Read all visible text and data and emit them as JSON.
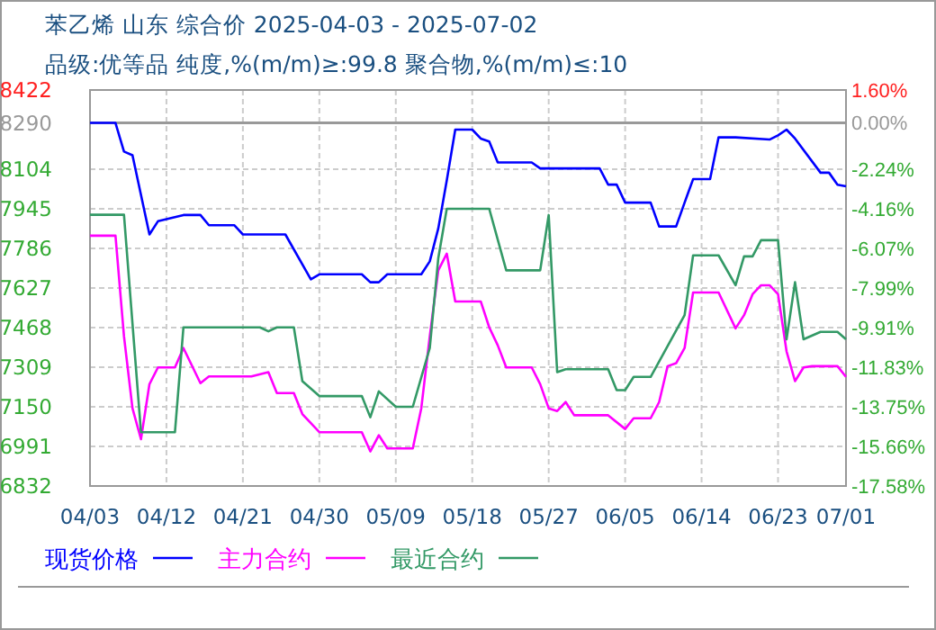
{
  "chart_data": {
    "type": "line",
    "title": "苯乙烯 山东 综合价 2025-04-03 - 2025-07-02",
    "subtitle": "品级:优等品 纯度,%(m/m)≥:99.8 聚合物,%(m/m)≤:10",
    "xlim": [
      "2025-04-03",
      "2025-07-01"
    ],
    "xticks": [
      {
        "value": "2025-04-03",
        "label": "04/03"
      },
      {
        "value": "2025-04-12",
        "label": "04/12"
      },
      {
        "value": "2025-04-21",
        "label": "04/21"
      },
      {
        "value": "2025-04-30",
        "label": "04/30"
      },
      {
        "value": "2025-05-09",
        "label": "05/09"
      },
      {
        "value": "2025-05-18",
        "label": "05/18"
      },
      {
        "value": "2025-05-27",
        "label": "05/27"
      },
      {
        "value": "2025-06-05",
        "label": "06/05"
      },
      {
        "value": "2025-06-14",
        "label": "06/14"
      },
      {
        "value": "2025-06-23",
        "label": "06/23"
      },
      {
        "value": "2025-07-01",
        "label": "07/01"
      }
    ],
    "ylim": [
      6832,
      8422
    ],
    "yticks": [
      6832,
      6991,
      7150,
      7309,
      7468,
      7627,
      7786,
      7945,
      8104,
      8290,
      8422
    ],
    "y2lim": [
      -17.58,
      1.6
    ],
    "y2ticks": [
      {
        "value": -17.58,
        "label": "-17.58%"
      },
      {
        "value": -15.66,
        "label": "-15.66%"
      },
      {
        "value": -13.75,
        "label": "-13.75%"
      },
      {
        "value": -11.83,
        "label": "-11.83%"
      },
      {
        "value": -9.91,
        "label": "-9.91%"
      },
      {
        "value": -7.99,
        "label": "-7.99%"
      },
      {
        "value": -6.07,
        "label": "-6.07%"
      },
      {
        "value": -4.16,
        "label": "-4.16%"
      },
      {
        "value": -2.24,
        "label": "-2.24%"
      },
      {
        "value": 0,
        "label": "0.00%"
      },
      {
        "value": 1.6,
        "label": "1.60%"
      }
    ],
    "grid": true,
    "legend": "bottom",
    "marker": "none",
    "line_style": "solid",
    "ref_lines": [
      {
        "axis": "y",
        "value": 8290,
        "color": "#999999"
      }
    ],
    "series": [
      {
        "name": "现货价格",
        "color": "#0000ff",
        "x": [
          "2025-04-03",
          "2025-04-06",
          "2025-04-07",
          "2025-04-08",
          "2025-04-10",
          "2025-04-11",
          "2025-04-14",
          "2025-04-16",
          "2025-04-17",
          "2025-04-20",
          "2025-04-21",
          "2025-04-26",
          "2025-04-29",
          "2025-04-30",
          "2025-05-05",
          "2025-05-06",
          "2025-05-07",
          "2025-05-08",
          "2025-05-12",
          "2025-05-13",
          "2025-05-14",
          "2025-05-15",
          "2025-05-16",
          "2025-05-18",
          "2025-05-19",
          "2025-05-20",
          "2025-05-21",
          "2025-05-25",
          "2025-05-26",
          "2025-06-02",
          "2025-06-03",
          "2025-06-04",
          "2025-06-05",
          "2025-06-08",
          "2025-06-09",
          "2025-06-11",
          "2025-06-12",
          "2025-06-13",
          "2025-06-15",
          "2025-06-16",
          "2025-06-18",
          "2025-06-22",
          "2025-06-23",
          "2025-06-24",
          "2025-06-25",
          "2025-06-28",
          "2025-06-29",
          "2025-06-30",
          "2025-07-01"
        ],
        "values": [
          8290,
          8290,
          8175,
          8160,
          7842,
          7895,
          7920,
          7920,
          7879,
          7879,
          7842,
          7842,
          7662,
          7682,
          7682,
          7650,
          7650,
          7682,
          7682,
          7734,
          7866,
          8059,
          8263,
          8263,
          8227,
          8215,
          8131,
          8131,
          8107,
          8107,
          8042,
          8042,
          7970,
          7970,
          7874,
          7874,
          7970,
          8064,
          8064,
          8232,
          8232,
          8223,
          8240,
          8263,
          8227,
          8090,
          8090,
          8042,
          8035
        ]
      },
      {
        "name": "主力合约",
        "color": "#ff00ff",
        "x": [
          "2025-04-03",
          "2025-04-06",
          "2025-04-07",
          "2025-04-08",
          "2025-04-09",
          "2025-04-10",
          "2025-04-11",
          "2025-04-13",
          "2025-04-14",
          "2025-04-16",
          "2025-04-17",
          "2025-04-22",
          "2025-04-24",
          "2025-04-25",
          "2025-04-27",
          "2025-04-28",
          "2025-04-30",
          "2025-05-05",
          "2025-05-06",
          "2025-05-07",
          "2025-05-08",
          "2025-05-11",
          "2025-05-12",
          "2025-05-13",
          "2025-05-14",
          "2025-05-15",
          "2025-05-16",
          "2025-05-19",
          "2025-05-20",
          "2025-05-21",
          "2025-05-22",
          "2025-05-25",
          "2025-05-26",
          "2025-05-27",
          "2025-05-28",
          "2025-05-29",
          "2025-05-30",
          "2025-06-03",
          "2025-06-05",
          "2025-06-06",
          "2025-06-08",
          "2025-06-09",
          "2025-06-10",
          "2025-06-11",
          "2025-06-12",
          "2025-06-13",
          "2025-06-16",
          "2025-06-18",
          "2025-06-19",
          "2025-06-20",
          "2025-06-21",
          "2025-06-22",
          "2025-06-23",
          "2025-06-24",
          "2025-06-25",
          "2025-06-26",
          "2025-06-27",
          "2025-06-30",
          "2025-07-01"
        ],
        "values": [
          7837,
          7837,
          7433,
          7144,
          7020,
          7241,
          7308,
          7308,
          7386,
          7245,
          7272,
          7272,
          7289,
          7205,
          7205,
          7121,
          7048,
          7048,
          6971,
          7036,
          6983,
          6983,
          7144,
          7433,
          7698,
          7765,
          7573,
          7573,
          7469,
          7397,
          7308,
          7308,
          7241,
          7144,
          7133,
          7169,
          7116,
          7116,
          7061,
          7104,
          7104,
          7169,
          7313,
          7325,
          7386,
          7609,
          7609,
          7465,
          7518,
          7602,
          7638,
          7638,
          7602,
          7373,
          7253,
          7308,
          7313,
          7313,
          7270
        ]
      },
      {
        "name": "最近合约",
        "color": "#339966",
        "x": [
          "2025-04-03",
          "2025-04-07",
          "2025-04-09",
          "2025-04-13",
          "2025-04-14",
          "2025-04-23",
          "2025-04-24",
          "2025-04-25",
          "2025-04-27",
          "2025-04-28",
          "2025-04-30",
          "2025-05-05",
          "2025-05-06",
          "2025-05-07",
          "2025-05-09",
          "2025-05-11",
          "2025-05-13",
          "2025-05-14",
          "2025-05-15",
          "2025-05-20",
          "2025-05-22",
          "2025-05-26",
          "2025-05-27",
          "2025-05-28",
          "2025-05-29",
          "2025-06-03",
          "2025-06-04",
          "2025-06-05",
          "2025-06-06",
          "2025-06-08",
          "2025-06-12",
          "2025-06-13",
          "2025-06-16",
          "2025-06-18",
          "2025-06-19",
          "2025-06-20",
          "2025-06-21",
          "2025-06-23",
          "2025-06-24",
          "2025-06-25",
          "2025-06-26",
          "2025-06-28",
          "2025-06-30",
          "2025-07-01"
        ],
        "values": [
          7921,
          7921,
          7048,
          7048,
          7469,
          7469,
          7453,
          7469,
          7469,
          7253,
          7193,
          7193,
          7108,
          7212,
          7150,
          7150,
          7386,
          7746,
          7945,
          7945,
          7698,
          7698,
          7920,
          7289,
          7301,
          7301,
          7217,
          7217,
          7270,
          7270,
          7518,
          7758,
          7758,
          7638,
          7754,
          7754,
          7819,
          7819,
          7421,
          7650,
          7421,
          7451,
          7451,
          7421
        ]
      }
    ]
  }
}
